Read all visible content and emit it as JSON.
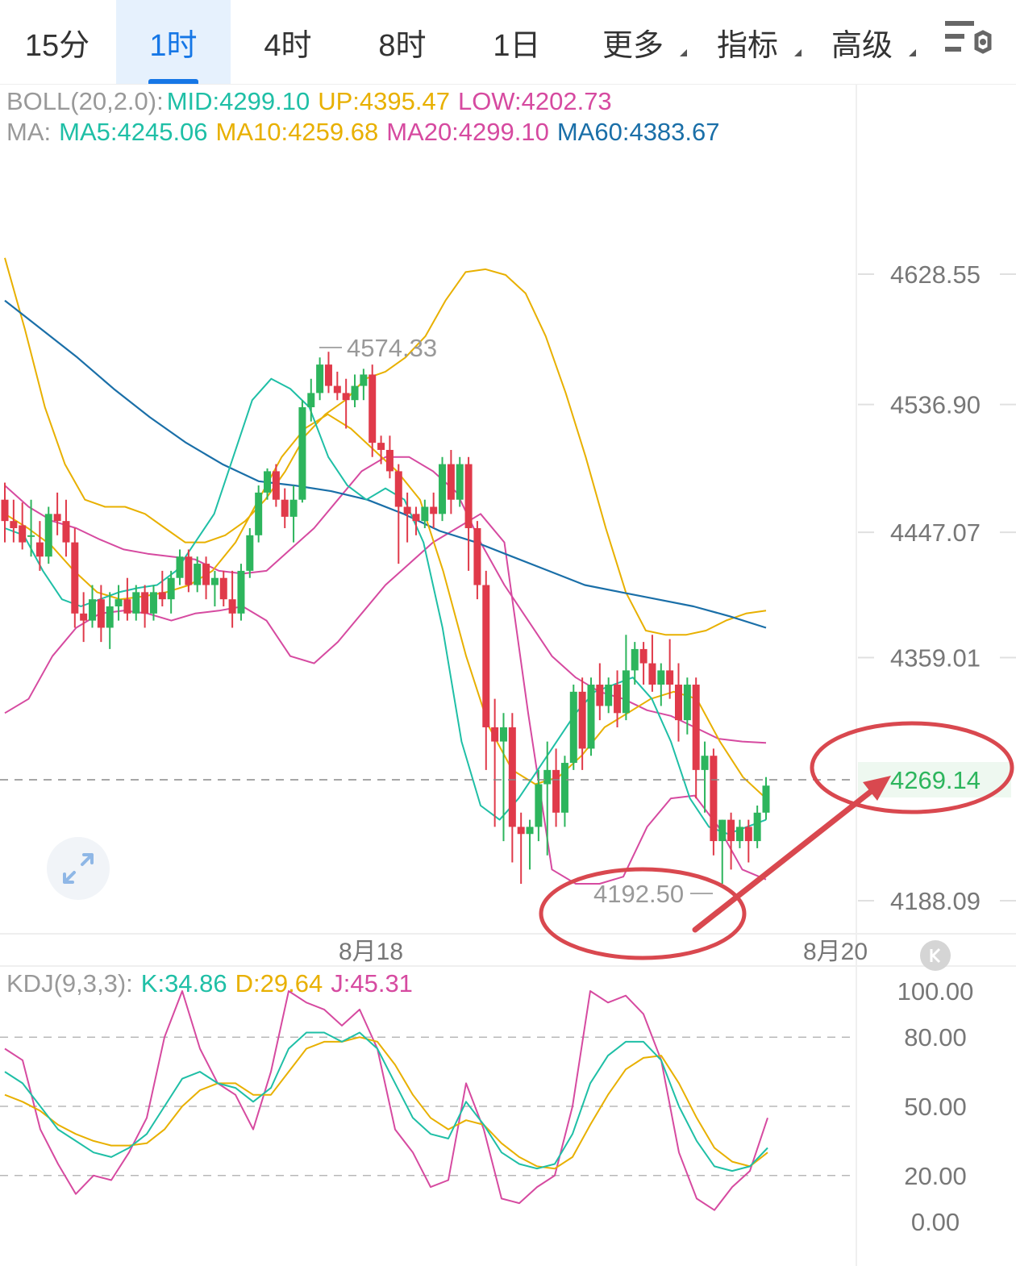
{
  "tabs": [
    {
      "label": "15分"
    },
    {
      "label": "1时",
      "active": true
    },
    {
      "label": "4时"
    },
    {
      "label": "8时"
    },
    {
      "label": "1日"
    },
    {
      "label": "更多"
    },
    {
      "label": "指标"
    },
    {
      "label": "高级"
    }
  ],
  "boll_legend": {
    "name": "BOLL(20,2.0):",
    "mid": "MID:4299.10",
    "up": "UP:4395.47",
    "low": "LOW:4202.73"
  },
  "ma_legend": {
    "name": "MA:",
    "ma5": "MA5:4245.06",
    "ma10": "MA10:4259.68",
    "ma20": "MA20:4299.10",
    "ma60": "MA60:4383.67"
  },
  "kdj_legend": {
    "name": "KDJ(9,3,3):",
    "k": "K:34.86",
    "d": "D:29.64",
    "j": "J:45.31"
  },
  "colors": {
    "up": "#2db55d",
    "down": "#e03a4a",
    "ma5": "#1fbfa6",
    "ma10": "#e8b000",
    "ma20": "#d64aa0",
    "ma60": "#1a6fa8",
    "accent": "#1677e6",
    "annotation": "#d9484f"
  },
  "icons": {
    "settings": "filter-settings-icon",
    "expand": "expand-arrows-icon",
    "k_button": "k-line-icon"
  },
  "chart_data": {
    "type": "candlestick",
    "price_axis": {
      "labels": [
        "4628.55",
        "4536.90",
        "4447.07",
        "4359.01",
        "4188.09"
      ]
    },
    "x_axis": {
      "labels": [
        "8月18",
        "8月20"
      ]
    },
    "current_price": "4269.14",
    "high_marker": "4574.33",
    "low_marker": "4192.50",
    "candles": [
      [
        4470,
        4482,
        4440,
        4455
      ],
      [
        4455,
        4470,
        4440,
        4450
      ],
      [
        4452,
        4468,
        4435,
        4440
      ],
      [
        4445,
        4470,
        4430,
        4445
      ],
      [
        4440,
        4455,
        4420,
        4430
      ],
      [
        4430,
        4465,
        4425,
        4460
      ],
      [
        4460,
        4475,
        4445,
        4455
      ],
      [
        4455,
        4470,
        4430,
        4440
      ],
      [
        4440,
        4450,
        4380,
        4390
      ],
      [
        4390,
        4405,
        4370,
        4385
      ],
      [
        4385,
        4410,
        4380,
        4400
      ],
      [
        4400,
        4410,
        4370,
        4380
      ],
      [
        4380,
        4405,
        4365,
        4395
      ],
      [
        4395,
        4410,
        4385,
        4400
      ],
      [
        4400,
        4415,
        4385,
        4390
      ],
      [
        4390,
        4410,
        4385,
        4405
      ],
      [
        4405,
        4410,
        4380,
        4390
      ],
      [
        4390,
        4410,
        4385,
        4405
      ],
      [
        4405,
        4420,
        4395,
        4400
      ],
      [
        4400,
        4420,
        4390,
        4415
      ],
      [
        4415,
        4435,
        4410,
        4430
      ],
      [
        4430,
        4435,
        4405,
        4410
      ],
      [
        4410,
        4430,
        4405,
        4425
      ],
      [
        4425,
        4430,
        4400,
        4410
      ],
      [
        4410,
        4420,
        4395,
        4415
      ],
      [
        4415,
        4420,
        4395,
        4400
      ],
      [
        4400,
        4420,
        4380,
        4390
      ],
      [
        4390,
        4425,
        4385,
        4420
      ],
      [
        4420,
        4450,
        4415,
        4445
      ],
      [
        4445,
        4480,
        4440,
        4475
      ],
      [
        4475,
        4492,
        4470,
        4490
      ],
      [
        4490,
        4495,
        4465,
        4470
      ],
      [
        4470,
        4478,
        4450,
        4458
      ],
      [
        4458,
        4480,
        4440,
        4470
      ],
      [
        4470,
        4540,
        4468,
        4535
      ],
      [
        4535,
        4555,
        4525,
        4545
      ],
      [
        4545,
        4570,
        4540,
        4565
      ],
      [
        4565,
        4574,
        4545,
        4550
      ],
      [
        4550,
        4560,
        4540,
        4545
      ],
      [
        4545,
        4555,
        4520,
        4540
      ],
      [
        4540,
        4558,
        4535,
        4550
      ],
      [
        4550,
        4562,
        4540,
        4558
      ],
      [
        4558,
        4565,
        4500,
        4510
      ],
      [
        4510,
        4515,
        4495,
        4505
      ],
      [
        4505,
        4515,
        4485,
        4490
      ],
      [
        4490,
        4495,
        4425,
        4465
      ],
      [
        4465,
        4475,
        4440,
        4460
      ],
      [
        4460,
        4465,
        4445,
        4455
      ],
      [
        4455,
        4470,
        4450,
        4465
      ],
      [
        4465,
        4475,
        4450,
        4460
      ],
      [
        4460,
        4500,
        4455,
        4495
      ],
      [
        4495,
        4505,
        4460,
        4470
      ],
      [
        4470,
        4500,
        4465,
        4495
      ],
      [
        4495,
        4500,
        4420,
        4450
      ],
      [
        4450,
        4455,
        4400,
        4410
      ],
      [
        4410,
        4420,
        4280,
        4310
      ],
      [
        4310,
        4330,
        4240,
        4300
      ],
      [
        4300,
        4320,
        4230,
        4310
      ],
      [
        4310,
        4320,
        4215,
        4240
      ],
      [
        4240,
        4250,
        4200,
        4235
      ],
      [
        4235,
        4245,
        4210,
        4240
      ],
      [
        4240,
        4280,
        4230,
        4270
      ],
      [
        4270,
        4300,
        4220,
        4280
      ],
      [
        4280,
        4295,
        4240,
        4250
      ],
      [
        4250,
        4290,
        4240,
        4285
      ],
      [
        4285,
        4340,
        4280,
        4335
      ],
      [
        4335,
        4345,
        4280,
        4295
      ],
      [
        4295,
        4345,
        4290,
        4340
      ],
      [
        4340,
        4355,
        4315,
        4325
      ],
      [
        4325,
        4345,
        4320,
        4340
      ],
      [
        4340,
        4350,
        4310,
        4320
      ],
      [
        4320,
        4375,
        4315,
        4350
      ],
      [
        4350,
        4370,
        4340,
        4365
      ],
      [
        4365,
        4370,
        4340,
        4355
      ],
      [
        4355,
        4375,
        4335,
        4340
      ],
      [
        4340,
        4355,
        4325,
        4350
      ],
      [
        4350,
        4372,
        4330,
        4340
      ],
      [
        4340,
        4355,
        4300,
        4315
      ],
      [
        4315,
        4345,
        4305,
        4340
      ],
      [
        4340,
        4345,
        4260,
        4280
      ],
      [
        4280,
        4300,
        4250,
        4290
      ],
      [
        4290,
        4295,
        4220,
        4230
      ],
      [
        4230,
        4245,
        4200,
        4245
      ],
      [
        4245,
        4250,
        4210,
        4230
      ],
      [
        4230,
        4245,
        4225,
        4240
      ],
      [
        4240,
        4245,
        4215,
        4230
      ],
      [
        4230,
        4255,
        4225,
        4250
      ],
      [
        4250,
        4275,
        4245,
        4269
      ]
    ],
    "boll_up": [
      4640,
      4590,
      4535,
      4495,
      4470,
      4465,
      4465,
      4460,
      4450,
      4440,
      4440,
      4445,
      4455,
      4470,
      4490,
      4515,
      4530,
      4540,
      4555,
      4560,
      4570,
      4585,
      4610,
      4630,
      4632,
      4628,
      4615,
      4585,
      4545,
      4500,
      4450,
      4405,
      4378,
      4375,
      4375,
      4378,
      4385,
      4390,
      4392
    ],
    "boll_mid": [
      4480,
      4465,
      4455,
      4450,
      4442,
      4435,
      4432,
      4430,
      4428,
      4420,
      4418,
      4420,
      4435,
      4450,
      4470,
      4490,
      4500,
      4500,
      4490,
      4475,
      4440,
      4410,
      4385,
      4360,
      4345,
      4335,
      4330,
      4322,
      4318,
      4310,
      4302,
      4300,
      4299
    ],
    "boll_low": [
      4320,
      4330,
      4360,
      4380,
      4390,
      4392,
      4390,
      4385,
      4390,
      4392,
      4395,
      4385,
      4360,
      4355,
      4370,
      4390,
      4410,
      4425,
      4440,
      4450,
      4460,
      4440,
      4320,
      4210,
      4200,
      4200,
      4205,
      4240,
      4260,
      4262,
      4240,
      4210,
      4203
    ],
    "ma5": [
      4450,
      4445,
      4420,
      4400,
      4395,
      4400,
      4405,
      4408,
      4410,
      4420,
      4440,
      4460,
      4500,
      4540,
      4555,
      4548,
      4535,
      4500,
      4480,
      4470,
      4478,
      4470,
      4440,
      4380,
      4300,
      4255,
      4245,
      4260,
      4280,
      4300,
      4320,
      4335,
      4340,
      4345,
      4330,
      4300,
      4260,
      4240,
      4235,
      4240,
      4245
    ],
    "ma10": [
      4460,
      4450,
      4438,
      4420,
      4405,
      4400,
      4402,
      4405,
      4410,
      4420,
      4440,
      4470,
      4500,
      4520,
      4530,
      4520,
      4505,
      4490,
      4470,
      4420,
      4360,
      4310,
      4280,
      4270,
      4275,
      4290,
      4310,
      4320,
      4330,
      4335,
      4330,
      4300,
      4275,
      4260
    ],
    "ma60": [
      4610,
      4590,
      4570,
      4548,
      4528,
      4510,
      4495,
      4483,
      4480,
      4476,
      4470,
      4460,
      4448,
      4440,
      4430,
      4420,
      4410,
      4405,
      4400,
      4395,
      4388,
      4380
    ],
    "kdj": {
      "y_labels": [
        "100.00",
        "80.00",
        "50.00",
        "20.00",
        "0.00"
      ],
      "k": [
        65,
        60,
        50,
        40,
        35,
        30,
        28,
        32,
        38,
        50,
        62,
        65,
        60,
        58,
        52,
        58,
        75,
        82,
        82,
        78,
        82,
        75,
        60,
        45,
        38,
        36,
        52,
        42,
        30,
        25,
        23,
        25,
        38,
        60,
        72,
        78,
        78,
        70,
        50,
        35,
        24,
        22,
        24,
        32
      ],
      "d": [
        55,
        52,
        48,
        42,
        38,
        35,
        33,
        33,
        34,
        40,
        50,
        57,
        60,
        60,
        55,
        55,
        65,
        75,
        78,
        78,
        80,
        78,
        68,
        55,
        45,
        40,
        44,
        42,
        34,
        28,
        24,
        23,
        28,
        42,
        55,
        66,
        71,
        72,
        60,
        45,
        32,
        26,
        24,
        30
      ],
      "j": [
        75,
        70,
        40,
        25,
        12,
        20,
        18,
        30,
        45,
        80,
        100,
        75,
        60,
        55,
        40,
        65,
        100,
        95,
        92,
        85,
        92,
        75,
        40,
        30,
        15,
        18,
        60,
        40,
        10,
        8,
        15,
        20,
        50,
        100,
        95,
        98,
        90,
        70,
        30,
        10,
        5,
        15,
        22,
        45
      ]
    }
  }
}
